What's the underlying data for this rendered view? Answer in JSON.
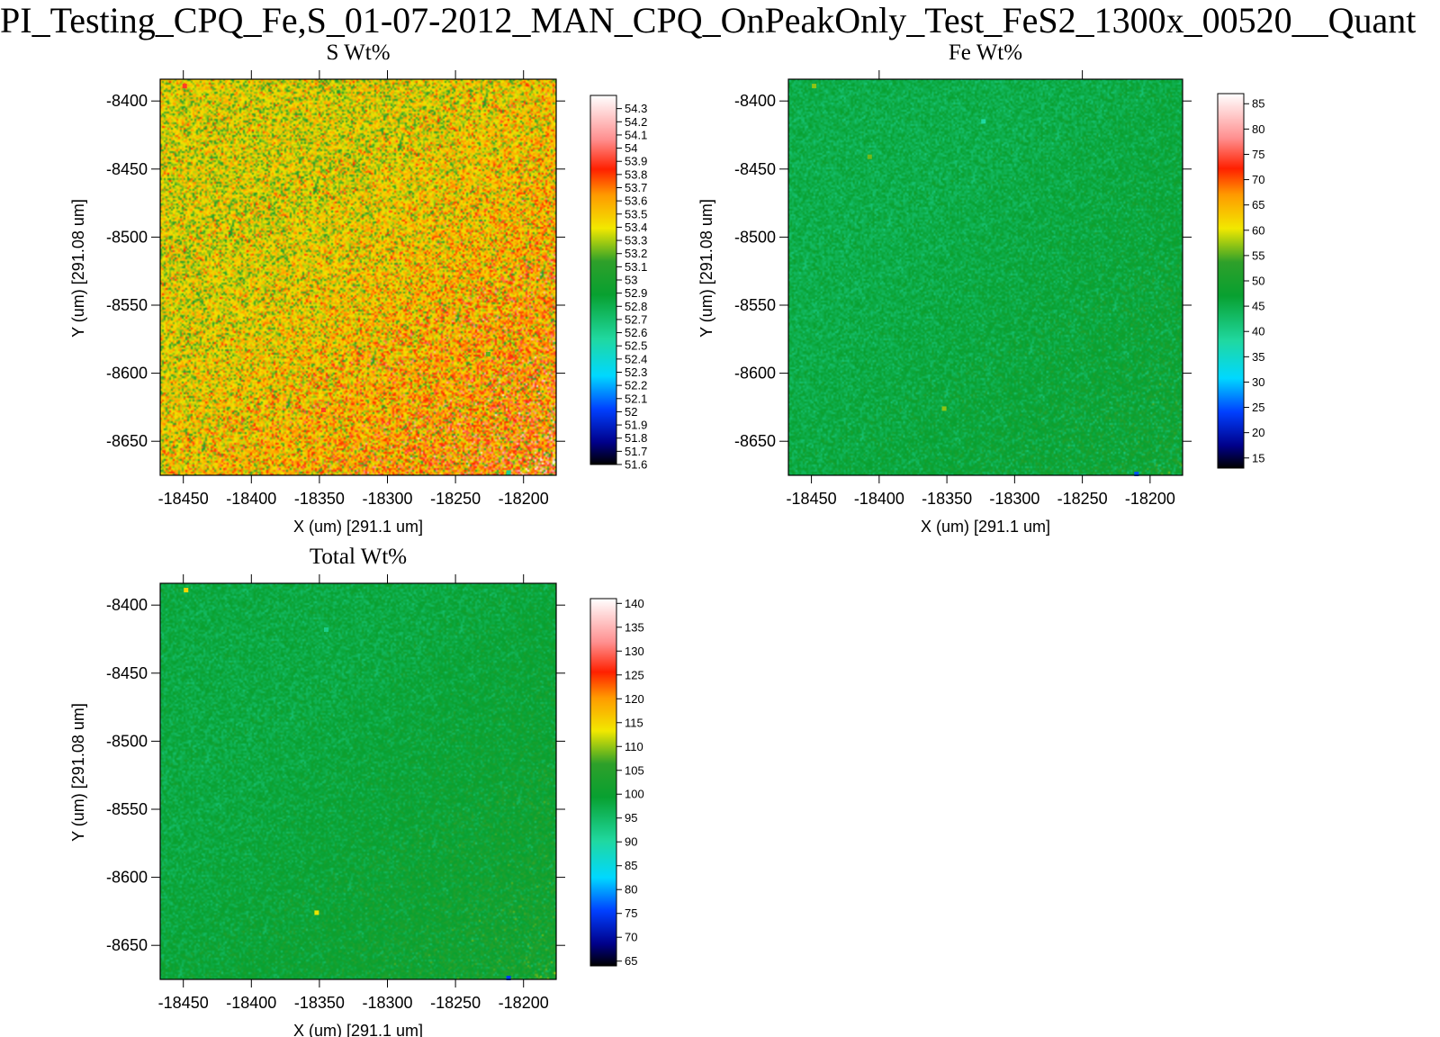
{
  "title": "PI_Testing_CPQ_Fe,S_01-07-2012_MAN_CPQ_OnPeakOnly_Test_FeS2_1300x_00520__Quant",
  "chart_data": [
    {
      "type": "heatmap",
      "title": "S Wt%",
      "xlabel": "X (um)   [291.1 um]",
      "ylabel": "Y (um)   [291.08 um]",
      "xlim": [
        -18467,
        -18176
      ],
      "ylim": [
        -8675,
        -8384
      ],
      "xticks": [
        -18450,
        -18400,
        -18350,
        -18300,
        -18250,
        -18200
      ],
      "yticks": [
        -8400,
        -8450,
        -8500,
        -8550,
        -8600,
        -8650
      ],
      "x_top_ticks": [
        -18450,
        -18400,
        -18350,
        -18300,
        -18250,
        -18200
      ],
      "colorbar": {
        "ticks": [
          54.3,
          54.2,
          54.1,
          54,
          53.9,
          53.8,
          53.7,
          53.6,
          53.5,
          53.4,
          53.3,
          53.2,
          53.1,
          53,
          52.9,
          52.8,
          52.7,
          52.6,
          52.5,
          52.4,
          52.3,
          52.2,
          52.1,
          52,
          51.9,
          51.8,
          51.7,
          51.6
        ],
        "min": 51.6,
        "max": 54.4
      },
      "field": {
        "mean_top_left": 53.4,
        "mean_bottom_right": 53.7,
        "noise": 0.25
      },
      "outliers": [
        {
          "x": -18449,
          "y": -8389,
          "value": 53.9
        },
        {
          "x": -18211,
          "y": -8673,
          "value": 52.6
        },
        {
          "x": -18347,
          "y": -8627,
          "value": 53.9
        },
        {
          "x": -18226,
          "y": -8586,
          "value": 53.2
        }
      ]
    },
    {
      "type": "heatmap",
      "title": "Fe Wt%",
      "xlabel": "X (um)   [291.1 um]",
      "ylabel": "Y (um)   [291.08 um]",
      "xlim": [
        -18467,
        -18176
      ],
      "ylim": [
        -8675,
        -8384
      ],
      "xticks": [
        -18450,
        -18400,
        -18350,
        -18300,
        -18250,
        -18200
      ],
      "yticks": [
        -8400,
        -8450,
        -8500,
        -8550,
        -8600,
        -8650
      ],
      "x_top_ticks": [
        -18400,
        -18250
      ],
      "colorbar": {
        "ticks": [
          85,
          80,
          75,
          70,
          65,
          60,
          55,
          50,
          45,
          40,
          35,
          30,
          25,
          20,
          15
        ],
        "min": 13,
        "max": 87
      },
      "field": {
        "mean_top_left": 45,
        "mean_bottom_right": 48,
        "noise": 2.5
      },
      "outliers": [
        {
          "x": -18448,
          "y": -8389,
          "value": 57
        },
        {
          "x": -18352,
          "y": -8626,
          "value": 57
        },
        {
          "x": -18210,
          "y": -8674,
          "value": 25
        },
        {
          "x": -18407,
          "y": -8441,
          "value": 56
        },
        {
          "x": -18323,
          "y": -8415,
          "value": 38
        }
      ]
    },
    {
      "type": "heatmap",
      "title": "Total Wt%",
      "xlabel": "X (um)   [291.1 um]",
      "ylabel": "Y (um)   [291.08 um]",
      "xlim": [
        -18467,
        -18176
      ],
      "ylim": [
        -8675,
        -8384
      ],
      "xticks": [
        -18450,
        -18400,
        -18350,
        -18300,
        -18250,
        -18200
      ],
      "yticks": [
        -8400,
        -8450,
        -8500,
        -8550,
        -8600,
        -8650
      ],
      "x_top_ticks": [
        -18450,
        -18400,
        -18350,
        -18300,
        -18250,
        -18200
      ],
      "colorbar": {
        "ticks": [
          140,
          135,
          130,
          125,
          120,
          115,
          110,
          105,
          100,
          95,
          90,
          85,
          80,
          75,
          70,
          65
        ],
        "min": 64,
        "max": 141
      },
      "field": {
        "mean_top_left": 98,
        "mean_bottom_right": 102,
        "noise": 2.6
      },
      "outliers": [
        {
          "x": -18448,
          "y": -8389,
          "value": 115
        },
        {
          "x": -18352,
          "y": -8626,
          "value": 113
        },
        {
          "x": -18211,
          "y": -8674,
          "value": 75
        },
        {
          "x": -18345,
          "y": -8418,
          "value": 92
        }
      ]
    }
  ]
}
